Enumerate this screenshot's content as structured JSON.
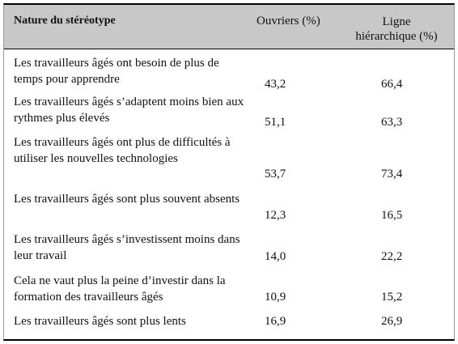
{
  "header": {
    "stereotype": "Nature du stéréotype",
    "ouvriers": "Ouvriers (%)",
    "ligne_line1": "Ligne",
    "ligne_line2": "hiérarchique (%)"
  },
  "rows": [
    {
      "label": "Les travailleurs âgés ont besoin de plus de temps pour apprendre",
      "ouvriers": "43,2",
      "ligne": "66,4"
    },
    {
      "label": "Les travailleurs âgés s’adaptent moins bien aux rythmes plus élevés",
      "ouvriers": "51,1",
      "ligne": "63,3"
    },
    {
      "label": "Les travailleurs âgés ont plus de difficultés à utiliser les nouvelles technologies",
      "ouvriers": "53,7",
      "ligne": "73,4"
    },
    {
      "label": "Les travailleurs âgés sont plus souvent absents",
      "ouvriers": "12,3",
      "ligne": "16,5"
    },
    {
      "label": "Les travailleurs âgés s’investissent moins dans leur travail",
      "ouvriers": "14,0",
      "ligne": "22,2"
    },
    {
      "label": "Cela ne vaut plus la peine d’investir dans la formation des travailleurs âgés",
      "ouvriers": "10,9",
      "ligne": "15,2"
    },
    {
      "label": "Les travailleurs âgés sont plus lents",
      "ouvriers": "16,9",
      "ligne": "26,9"
    }
  ]
}
